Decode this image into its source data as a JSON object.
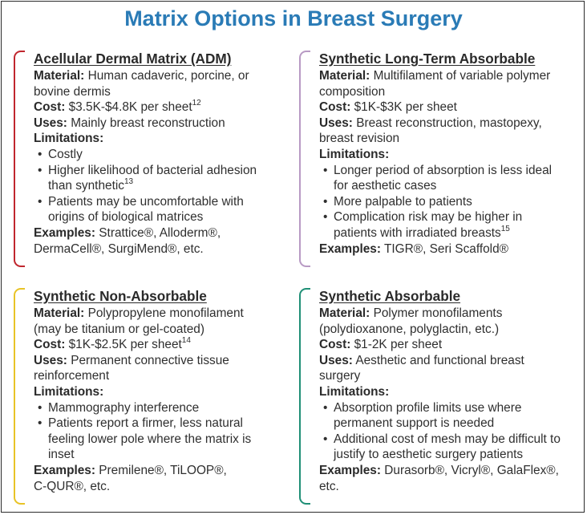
{
  "title": "Matrix Options in Breast Surgery",
  "colors": {
    "title": "#2a7bb6",
    "adm_bracket": "#c0262e",
    "slta_bracket": "#b89ac4",
    "sna_bracket": "#e8c326",
    "sa_bracket": "#1f8f76"
  },
  "labels": {
    "material": "Material:",
    "cost": "Cost:",
    "uses": "Uses:",
    "limitations": "Limitations:",
    "examples": "Examples:"
  },
  "panels": {
    "adm": {
      "heading": "Acellular Dermal Matrix (ADM)",
      "material_line1": "Human cadaveric, porcine, or",
      "material_line2": "bovine dermis",
      "cost": "$3.5K-$4.8K per sheet",
      "cost_ref": "12",
      "uses": "Mainly breast reconstruction",
      "limit1": "Costly",
      "limit2_line1": "Higher likelihood of bacterial adhesion",
      "limit2_line2": "than synthetic",
      "limit2_ref": "13",
      "limit3_line1": "Patients may be uncomfortable with",
      "limit3_line2": "origins of biological matrices",
      "examples_line1": "Strattice®, Alloderm®,",
      "examples_line2": "DermaCell®, SurgiMend®, etc."
    },
    "slta": {
      "heading": "Synthetic Long-Term Absorbable",
      "material_line1": "Multifilament of variable polymer",
      "material_line2": "composition",
      "cost": "$1K-$3K per sheet",
      "uses_line1": "Breast reconstruction, mastopexy,",
      "uses_line2": "breast revision",
      "limit1_line1": "Longer period of absorption is less ideal",
      "limit1_line2": "for aesthetic cases",
      "limit2": "More palpable to patients",
      "limit3_line1": "Complication risk may be higher in",
      "limit3_line2": "patients with irradiated breasts",
      "limit3_ref": "15",
      "examples": "TIGR®, Seri Scaffold®"
    },
    "sna": {
      "heading": "Synthetic Non-Absorbable",
      "material_line1": "Polypropylene monofilament",
      "material_line2": "(may be titanium or gel-coated)",
      "cost": "$1K-$2.5K per sheet",
      "cost_ref": "14",
      "uses_line1": "Permanent connective tissue",
      "uses_line2": "reinforcement",
      "limit1": "Mammography interference",
      "limit2_line1": "Patients report a firmer, less natural",
      "limit2_line2": "feeling lower pole where the matrix is",
      "limit2_line3": "inset",
      "examples_line1": "Premilene®, TiLOOP®,",
      "examples_line2": "C-QUR®, etc."
    },
    "sa": {
      "heading": "Synthetic Absorbable",
      "material_line1": "Polymer monofilaments",
      "material_line2": "(polydioxanone, polyglactin, etc.)",
      "cost": "$1-2K per sheet",
      "uses_line1": "Aesthetic and functional breast",
      "uses_line2": "surgery",
      "limit1_line1": "Absorption profile limits use where",
      "limit1_line2": "permanent support is needed",
      "limit2_line1": "Additional cost of mesh may be difficult to",
      "limit2_line2": "justify to aesthetic surgery patients",
      "examples_line1": "Durasorb®, Vicryl®, GalaFlex®,",
      "examples_line2": "etc."
    }
  }
}
